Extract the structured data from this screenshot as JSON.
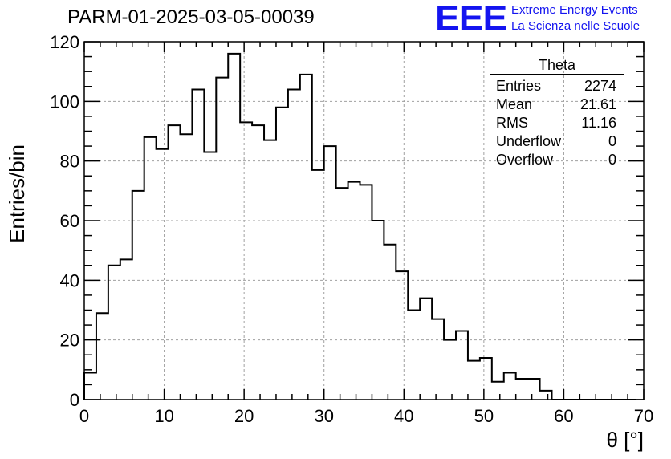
{
  "header": {
    "title": "PARM-01-2025-03-05-00039",
    "logo": "EEE",
    "logo_line1": "Extreme Energy Events",
    "logo_line2": "La Scienza nelle Scuole"
  },
  "stats": {
    "name": "Theta",
    "rows": [
      {
        "label": "Entries",
        "value": "2274"
      },
      {
        "label": "Mean",
        "value": "21.61"
      },
      {
        "label": "RMS",
        "value": "11.16"
      },
      {
        "label": "Underflow",
        "value": "0"
      },
      {
        "label": "Overflow",
        "value": "0"
      }
    ]
  },
  "colors": {
    "line": "#000000",
    "grid": "#a0a0a0",
    "logo": "#1414f0"
  },
  "chart_data": {
    "type": "histogram",
    "title": "PARM-01-2025-03-05-00039",
    "xlabel": "θ [°]",
    "ylabel": "Entries/bin",
    "xlim": [
      0,
      70
    ],
    "ylim": [
      0,
      120
    ],
    "grid": true,
    "bin_width": 1.5,
    "bin_start": 0,
    "x_ticks": [
      0,
      10,
      20,
      30,
      40,
      50,
      60,
      70
    ],
    "y_ticks": [
      0,
      20,
      40,
      60,
      80,
      100,
      120
    ],
    "values": [
      9,
      29,
      45,
      47,
      70,
      88,
      84,
      92,
      89,
      104,
      83,
      108,
      116,
      93,
      92,
      87,
      98,
      104,
      109,
      77,
      85,
      71,
      73,
      72,
      60,
      52,
      43,
      30,
      34,
      27,
      20,
      23,
      13,
      14,
      6,
      9,
      7,
      7,
      3,
      0,
      0,
      0,
      0,
      0,
      0,
      0
    ]
  }
}
